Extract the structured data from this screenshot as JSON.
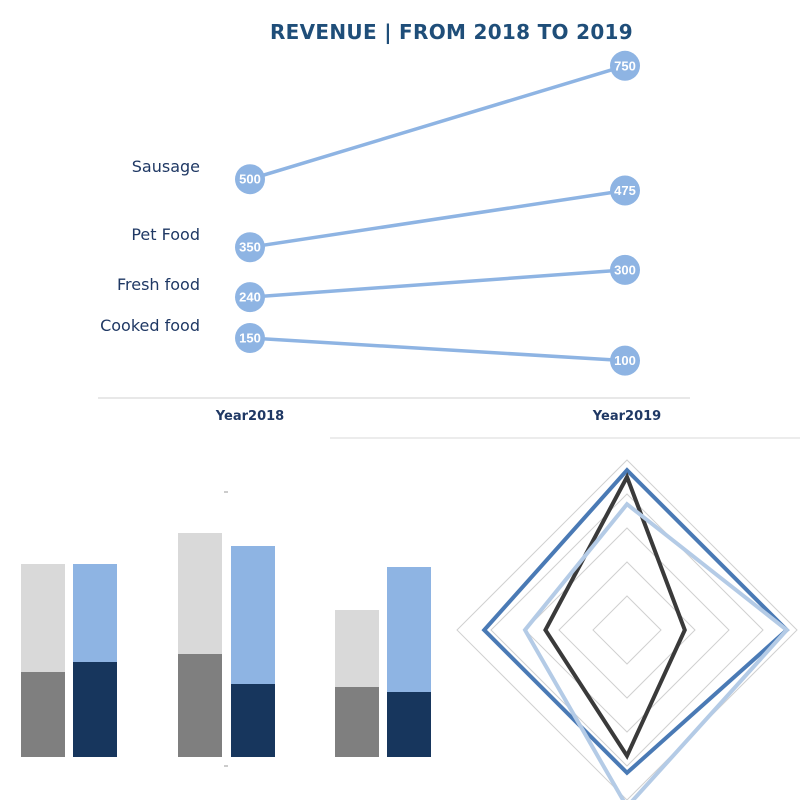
{
  "chart_data": [
    {
      "type": "line",
      "title": "REVENUE | FROM 2018 TO 2019",
      "categories": [
        "Year2018",
        "Year2019"
      ],
      "series": [
        {
          "name": "Sausage",
          "values": [
            500,
            750
          ]
        },
        {
          "name": "Pet Food",
          "values": [
            350,
            475
          ]
        },
        {
          "name": "Fresh food",
          "values": [
            240,
            300
          ]
        },
        {
          "name": "Cooked food",
          "values": [
            150,
            100
          ]
        }
      ],
      "ylim": [
        0,
        800
      ],
      "colors": {
        "line": "#8eb4e3",
        "marker": "#8eb4e3",
        "label_text": "#ffffff"
      }
    },
    {
      "type": "bar",
      "stacked": true,
      "groups": 3,
      "series": [
        {
          "values": [
            {
              "base": 85,
              "total": 193
            },
            {
              "base": 103,
              "total": 224
            },
            {
              "base": 70,
              "total": 147
            }
          ]
        },
        {
          "values": [
            {
              "base": 95,
              "total": 193
            },
            {
              "base": 73,
              "total": 211
            },
            {
              "base": 65,
              "total": 190
            }
          ]
        }
      ],
      "ylim": [
        0,
        270
      ],
      "colors": {
        "light_gray": "#d9d9d9",
        "dark_gray": "#7f7f7f",
        "light_blue": "#8eb4e3",
        "navy": "#17365d"
      }
    },
    {
      "type": "radar",
      "axes": 4,
      "rlim": [
        0,
        5
      ],
      "rings": 5,
      "series": [
        {
          "values": [
            4.7,
            4.7,
            4.2,
            4.2
          ],
          "color": "#4a7ab5"
        },
        {
          "values": [
            4.5,
            1.7,
            3.7,
            2.4
          ],
          "color": "#3a3a3a"
        },
        {
          "values": [
            3.7,
            4.7,
            5.2,
            3.0
          ],
          "color": "#b4cbe6"
        }
      ],
      "colors": {
        "grid": "#d0d0d0"
      }
    }
  ]
}
